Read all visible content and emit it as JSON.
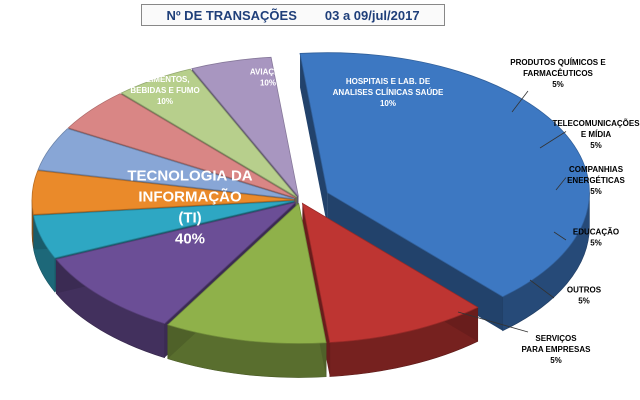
{
  "chart_data": {
    "type": "pie",
    "title": "Nº DE TRANSAÇÕES",
    "subtitle": "03 a 09/jul/2017",
    "slices": [
      {
        "label": [
          "TECNOLOGIA DA",
          "INFORMAÇÃO",
          "(TI)"
        ],
        "value": 40,
        "value_label": "40%",
        "color": "#3d78c2"
      },
      {
        "label": [
          "ALIMENTOS,",
          "BEBIDAS E FUMO"
        ],
        "value": 10,
        "value_label": "10%",
        "color": "#be3532"
      },
      {
        "label": [
          "AVIAÇÃO"
        ],
        "value": 10,
        "value_label": "10%",
        "color": "#8fb14a"
      },
      {
        "label": [
          "HOSPITAIS E LAB. DE",
          "ANALISES CLÍNICAS SAÚDE"
        ],
        "value": 10,
        "value_label": "10%",
        "color": "#6b4e96"
      },
      {
        "label": [
          "PRODUTOS QUÍMICOS E",
          "FARMACÊUTICOS"
        ],
        "value": 5,
        "value_label": "5%",
        "color": "#2ea7c3"
      },
      {
        "label": [
          "TELECOMUNICAÇÕES",
          "E MÍDIA"
        ],
        "value": 5,
        "value_label": "5%",
        "color": "#ea8a2a"
      },
      {
        "label": [
          "COMPANHIAS",
          "ENERGÉTICAS"
        ],
        "value": 5,
        "value_label": "5%",
        "color": "#88a6d6"
      },
      {
        "label": [
          "EDUCAÇÃO"
        ],
        "value": 5,
        "value_label": "5%",
        "color": "#d98685"
      },
      {
        "label": [
          "OUTROS"
        ],
        "value": 5,
        "value_label": "5%",
        "color": "#b7cf8c"
      },
      {
        "label": [
          "SERVIÇOS",
          "PARA EMPRESAS"
        ],
        "value": 5,
        "value_label": "5%",
        "color": "#a896c0"
      }
    ]
  }
}
